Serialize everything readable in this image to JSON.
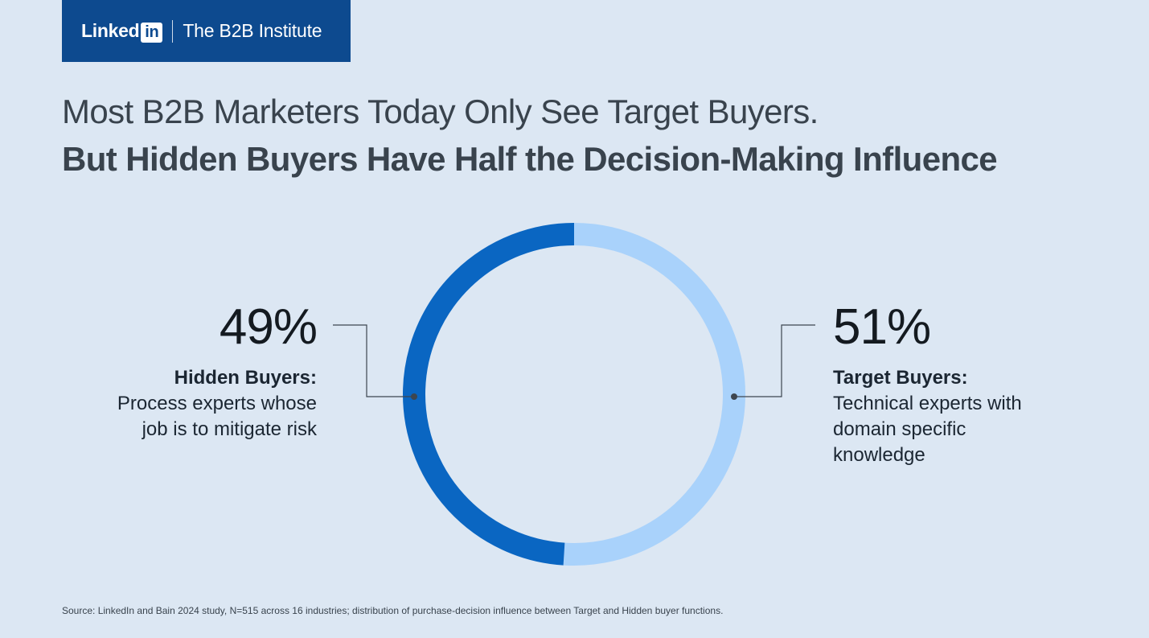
{
  "brand": {
    "logo_word": "Linked",
    "logo_in": "in",
    "subtitle": "The B2B Institute",
    "logo_icon": "linkedin-logo-icon"
  },
  "title": {
    "line1": "Most B2B Marketers Today Only See Target Buyers.",
    "line2": "But Hidden Buyers Have Half the Decision-Making Influence"
  },
  "chart_data": {
    "type": "pie",
    "subtype": "donut",
    "slices": [
      {
        "label": "Target Buyers",
        "value": 51,
        "display": "51%",
        "name": "Target Buyers:",
        "description": "Technical experts with domain specific knowledge",
        "color": "#a9d2fb",
        "side": "right"
      },
      {
        "label": "Hidden Buyers",
        "value": 49,
        "display": "49%",
        "name": "Hidden Buyers:",
        "description": "Process experts whose job is to mitigate risk",
        "color": "#0a66c2",
        "side": "left"
      }
    ],
    "start_angle": "top",
    "direction": "clockwise"
  },
  "source": "Source: LinkedIn and Bain 2024 study, N=515 across 16 industries; distribution of purchase-decision influence between Target and Hidden buyer functions.",
  "colors": {
    "background": "#dce7f3",
    "brand_bar": "#0d4a8f",
    "hidden": "#0a66c2",
    "target": "#a9d2fb",
    "leader": "#3d4650"
  }
}
